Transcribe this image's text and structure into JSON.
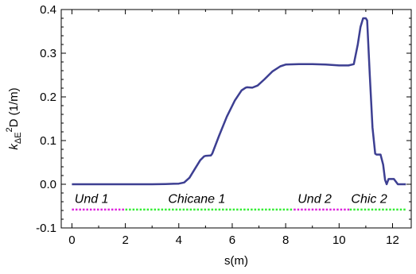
{
  "chart_data": {
    "type": "line",
    "title": "",
    "xlabel": "s(m)",
    "ylabel": {
      "prefix": "k",
      "subscript": "ΔE",
      "superscript": "2",
      "suffix": "D (1/m)"
    },
    "xlim": [
      -0.4,
      12.7
    ],
    "ylim": [
      -0.1,
      0.4
    ],
    "x_ticks": [
      0,
      2,
      4,
      6,
      8,
      10,
      12
    ],
    "x_tick_labels": [
      "0",
      "2",
      "4",
      "6",
      "8",
      "10",
      "12"
    ],
    "y_ticks": [
      -0.1,
      0.0,
      0.1,
      0.2,
      0.3,
      0.4
    ],
    "y_tick_labels": [
      "-0.1",
      "0.0",
      "0.1",
      "0.2",
      "0.3",
      "0.4"
    ],
    "grid": false,
    "legend": "none",
    "colors": {
      "main_line": "#3d3f92",
      "undulator": "#dd22dd",
      "chicane": "#33ee33"
    },
    "series": [
      {
        "color": "#3d3f92",
        "x": [
          0,
          1,
          2,
          3,
          3.5,
          3.8,
          4.0,
          4.2,
          4.4,
          4.6,
          4.8,
          4.95,
          5.0,
          5.2,
          5.25,
          5.5,
          5.8,
          6.1,
          6.35,
          6.5,
          6.55,
          6.75,
          6.95,
          7.2,
          7.5,
          7.8,
          8.0,
          8.5,
          9.0,
          9.5,
          10.0,
          10.35,
          10.55,
          10.7,
          10.8,
          10.9,
          11.0,
          11.05,
          11.15,
          11.25,
          11.35,
          11.4,
          11.55,
          11.65,
          11.72,
          11.78,
          11.85,
          11.95,
          12.05,
          12.2,
          12.5
        ],
        "y": [
          0,
          0,
          0,
          0,
          0.0005,
          0.001,
          0.0015,
          0.004,
          0.015,
          0.035,
          0.055,
          0.064,
          0.065,
          0.066,
          0.07,
          0.11,
          0.155,
          0.192,
          0.215,
          0.221,
          0.222,
          0.221,
          0.226,
          0.24,
          0.258,
          0.27,
          0.274,
          0.275,
          0.275,
          0.274,
          0.272,
          0.272,
          0.275,
          0.32,
          0.36,
          0.38,
          0.38,
          0.375,
          0.25,
          0.13,
          0.07,
          0.068,
          0.068,
          0.045,
          0.01,
          0.0,
          0.012,
          0.012,
          0.012,
          0.0,
          0.0
        ]
      }
    ],
    "segments": [
      {
        "label": "Und 1",
        "x": [
          0,
          2
        ],
        "y": -0.058,
        "color": "#dd22dd"
      },
      {
        "label": "Chicane 1",
        "x": [
          2,
          8.3
        ],
        "y": -0.058,
        "color": "#33ee33"
      },
      {
        "label": "Und 2",
        "x": [
          8.3,
          10.4
        ],
        "y": -0.058,
        "color": "#dd22dd"
      },
      {
        "label": "Chic 2",
        "x": [
          10.4,
          12.5
        ],
        "y": -0.058,
        "color": "#33ee33"
      }
    ],
    "annotations": [
      {
        "text": "Und 1",
        "x": 0.1,
        "y": -0.043
      },
      {
        "text": "Chicane 1",
        "x": 3.6,
        "y": -0.043
      },
      {
        "text": "Und 2",
        "x": 8.45,
        "y": -0.043
      },
      {
        "text": "Chic 2",
        "x": 10.45,
        "y": -0.043
      }
    ]
  }
}
